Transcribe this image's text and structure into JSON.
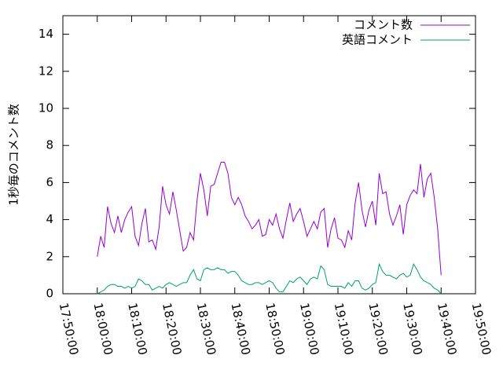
{
  "chart_data": {
    "type": "line",
    "y_label": "1秒毎のコメント数",
    "x": [
      "18:00:00",
      "18:01:00",
      "18:02:00",
      "18:03:00",
      "18:04:00",
      "18:05:00",
      "18:06:00",
      "18:07:00",
      "18:08:00",
      "18:09:00",
      "18:10:00",
      "18:11:00",
      "18:12:00",
      "18:13:00",
      "18:14:00",
      "18:15:00",
      "18:16:00",
      "18:17:00",
      "18:18:00",
      "18:19:00",
      "18:20:00",
      "18:21:00",
      "18:22:00",
      "18:23:00",
      "18:24:00",
      "18:25:00",
      "18:26:00",
      "18:27:00",
      "18:28:00",
      "18:29:00",
      "18:30:00",
      "18:31:00",
      "18:32:00",
      "18:33:00",
      "18:34:00",
      "18:35:00",
      "18:36:00",
      "18:37:00",
      "18:38:00",
      "18:39:00",
      "18:40:00",
      "18:41:00",
      "18:42:00",
      "18:43:00",
      "18:44:00",
      "18:45:00",
      "18:46:00",
      "18:47:00",
      "18:48:00",
      "18:49:00",
      "18:50:00",
      "18:51:00",
      "18:52:00",
      "18:53:00",
      "18:54:00",
      "18:55:00",
      "18:56:00",
      "18:57:00",
      "18:58:00",
      "18:59:00",
      "19:00:00",
      "19:01:00",
      "19:02:00",
      "19:03:00",
      "19:04:00",
      "19:05:00",
      "19:06:00",
      "19:07:00",
      "19:08:00",
      "19:09:00",
      "19:10:00",
      "19:11:00",
      "19:12:00",
      "19:13:00",
      "19:14:00",
      "19:15:00",
      "19:16:00",
      "19:17:00",
      "19:18:00",
      "19:19:00",
      "19:20:00",
      "19:21:00",
      "19:22:00",
      "19:23:00",
      "19:24:00",
      "19:25:00",
      "19:26:00",
      "19:27:00",
      "19:28:00",
      "19:29:00",
      "19:30:00",
      "19:31:00",
      "19:32:00",
      "19:33:00",
      "19:34:00",
      "19:35:00",
      "19:36:00",
      "19:37:00",
      "19:38:00",
      "19:39:00",
      "19:40:00"
    ],
    "series": [
      {
        "name": "コメント数",
        "color": "#9400d3",
        "values": [
          2.0,
          3.1,
          2.5,
          4.7,
          3.8,
          3.3,
          4.2,
          3.3,
          4.0,
          4.4,
          4.7,
          3.1,
          2.6,
          3.8,
          4.6,
          2.8,
          2.9,
          2.4,
          3.6,
          5.8,
          4.8,
          4.3,
          5.5,
          4.5,
          3.4,
          2.3,
          2.5,
          3.3,
          2.9,
          5.0,
          6.5,
          5.6,
          4.2,
          5.8,
          5.9,
          6.5,
          7.1,
          7.1,
          6.5,
          5.2,
          4.8,
          5.2,
          4.8,
          4.2,
          3.9,
          3.5,
          3.7,
          4.0,
          3.1,
          3.2,
          4.0,
          3.7,
          4.3,
          3.5,
          3.0,
          4.0,
          4.9,
          3.9,
          4.3,
          4.6,
          3.9,
          3.1,
          3.5,
          3.9,
          3.5,
          4.4,
          4.6,
          2.5,
          3.5,
          4.1,
          3.0,
          2.9,
          2.5,
          3.4,
          2.9,
          4.9,
          6.0,
          4.5,
          3.6,
          4.5,
          5.0,
          3.7,
          6.5,
          5.4,
          5.5,
          4.3,
          3.7,
          4.2,
          4.8,
          3.2,
          4.8,
          5.3,
          5.6,
          5.4,
          7.0,
          5.2,
          6.2,
          6.5,
          5.2,
          3.5,
          1.0
        ]
      },
      {
        "name": "英語コメント",
        "color": "#009e73",
        "values": [
          0.0,
          0.1,
          0.2,
          0.4,
          0.5,
          0.5,
          0.4,
          0.4,
          0.3,
          0.4,
          0.3,
          0.4,
          0.8,
          0.7,
          0.5,
          0.5,
          0.2,
          0.3,
          0.4,
          0.3,
          0.5,
          0.6,
          0.5,
          0.4,
          0.5,
          0.6,
          0.6,
          1.0,
          1.3,
          0.8,
          0.7,
          1.3,
          1.4,
          1.3,
          1.3,
          1.4,
          1.3,
          1.3,
          1.1,
          1.2,
          1.2,
          1.0,
          0.7,
          0.6,
          0.5,
          0.5,
          0.6,
          0.6,
          0.5,
          0.6,
          0.7,
          0.6,
          0.3,
          0.1,
          0.1,
          0.4,
          0.7,
          0.6,
          0.8,
          0.9,
          0.7,
          0.5,
          0.8,
          0.9,
          0.8,
          1.5,
          1.3,
          0.5,
          0.4,
          0.4,
          0.4,
          0.4,
          0.3,
          0.6,
          0.4,
          0.7,
          0.7,
          0.3,
          0.2,
          0.3,
          0.5,
          0.6,
          1.6,
          1.2,
          1.0,
          1.0,
          0.9,
          0.8,
          1.0,
          1.1,
          0.9,
          1.0,
          1.6,
          1.3,
          0.9,
          0.7,
          0.6,
          0.5,
          0.3,
          0.2,
          0.0
        ]
      }
    ],
    "xlim": [
      "17:50:00",
      "19:50:00"
    ],
    "xticks": [
      "17:50:00",
      "18:00:00",
      "18:10:00",
      "18:20:00",
      "18:30:00",
      "18:40:00",
      "18:50:00",
      "19:00:00",
      "19:10:00",
      "19:20:00",
      "19:30:00",
      "19:40:00",
      "19:50:00"
    ],
    "ylim": [
      0,
      15
    ],
    "yticks": [
      0,
      2,
      4,
      6,
      8,
      10,
      12,
      14
    ],
    "legend": "top-right"
  }
}
